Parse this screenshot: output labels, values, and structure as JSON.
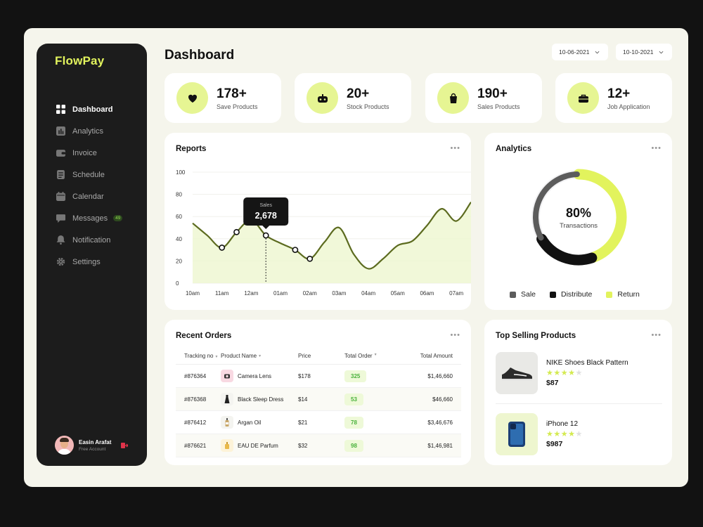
{
  "app": {
    "logo": "FlowPay"
  },
  "sidebar": {
    "items": [
      {
        "label": "Dashboard",
        "icon": "grid-icon",
        "active": true
      },
      {
        "label": "Analytics",
        "icon": "bar-chart-icon"
      },
      {
        "label": "Invoice",
        "icon": "wallet-icon"
      },
      {
        "label": "Schedule",
        "icon": "document-icon"
      },
      {
        "label": "Calendar",
        "icon": "calendar-icon"
      },
      {
        "label": "Messages",
        "icon": "chat-icon",
        "badge": "49"
      },
      {
        "label": "Notification",
        "icon": "bell-icon"
      },
      {
        "label": "Settings",
        "icon": "gear-icon"
      }
    ],
    "profile": {
      "name": "Easin Arafat",
      "role": "Free Account"
    }
  },
  "header": {
    "title": "Dashboard",
    "date_from": "10-06-2021",
    "date_to": "10-10-2021"
  },
  "stats": [
    {
      "value": "178+",
      "label": "Save Products",
      "icon": "heart-icon"
    },
    {
      "value": "20+",
      "label": "Stock Products",
      "icon": "gamepad-icon"
    },
    {
      "value": "190+",
      "label": "Sales Products",
      "icon": "shopping-bag-icon"
    },
    {
      "value": "12+",
      "label": "Job Application",
      "icon": "briefcase-icon"
    }
  ],
  "reports": {
    "title": "Reports",
    "tooltip": {
      "label": "Sales",
      "value": "2,678"
    },
    "chart_data": {
      "type": "area",
      "categories": [
        "10am",
        "11am",
        "12am",
        "01am",
        "02am",
        "03am",
        "04am",
        "05am",
        "06am",
        "07am"
      ],
      "x": [
        0,
        0.5,
        1,
        1.5,
        2,
        2.5,
        3,
        3.5,
        4,
        4.5,
        5,
        5.5,
        6,
        6.5,
        7,
        7.5,
        8,
        8.5,
        9,
        9.5
      ],
      "values": [
        54,
        43,
        32,
        46,
        57,
        43,
        36,
        30,
        22,
        37,
        50,
        26,
        13,
        22,
        34,
        38,
        52,
        67,
        56,
        73
      ],
      "markers": [
        2,
        3,
        5,
        7,
        8
      ],
      "highlight": 5,
      "ylim": [
        0,
        100
      ],
      "yticks": [
        0,
        20,
        40,
        60,
        80,
        100
      ],
      "grid": true,
      "color": "#5c6b1f",
      "fill": "#eef6cf"
    }
  },
  "analytics": {
    "title": "Analytics",
    "center_value": "80%",
    "center_label": "Transactions",
    "chart_data": {
      "type": "pie",
      "labels": [
        "Sale",
        "Distribute",
        "Return"
      ],
      "values": [
        33,
        22,
        45
      ],
      "colors": [
        "#5c5c5c",
        "#111111",
        "#e2f35d"
      ]
    },
    "legend": [
      {
        "label": "Sale",
        "color": "#5c5c5c"
      },
      {
        "label": "Distribute",
        "color": "#111111"
      },
      {
        "label": "Return",
        "color": "#e2f35d"
      }
    ]
  },
  "orders": {
    "title": "Recent Orders",
    "columns": [
      "Tracking no",
      "Product Name",
      "Price",
      "Total Order",
      "Total Amount"
    ],
    "rows": [
      {
        "tracking": "#876364",
        "product": "Camera Lens",
        "price": "$178",
        "total_order": "325",
        "amount": "$1,46,660",
        "thumb": "camera-icon",
        "thumb_bg": "#f8d9e2"
      },
      {
        "tracking": "#876368",
        "product": "Black Sleep Dress",
        "price": "$14",
        "total_order": "53",
        "amount": "$46,660",
        "thumb": "dress-icon",
        "thumb_bg": "#f2f2f2"
      },
      {
        "tracking": "#876412",
        "product": "Argan Oil",
        "price": "$21",
        "total_order": "78",
        "amount": "$3,46,676",
        "thumb": "bottle-icon",
        "thumb_bg": "#f2f2f2"
      },
      {
        "tracking": "#876621",
        "product": "EAU DE Parfum",
        "price": "$32",
        "total_order": "98",
        "amount": "$1,46,981",
        "thumb": "perfume-icon",
        "thumb_bg": "#fdf3d8"
      }
    ]
  },
  "top_selling": {
    "title": "Top Selling Products",
    "items": [
      {
        "name": "NIKE Shoes Black Pattern",
        "price": "$87",
        "rating": 4,
        "image": "shoe-icon"
      },
      {
        "name": "iPhone 12",
        "price": "$987",
        "rating": 4,
        "image": "phone-icon"
      }
    ]
  }
}
